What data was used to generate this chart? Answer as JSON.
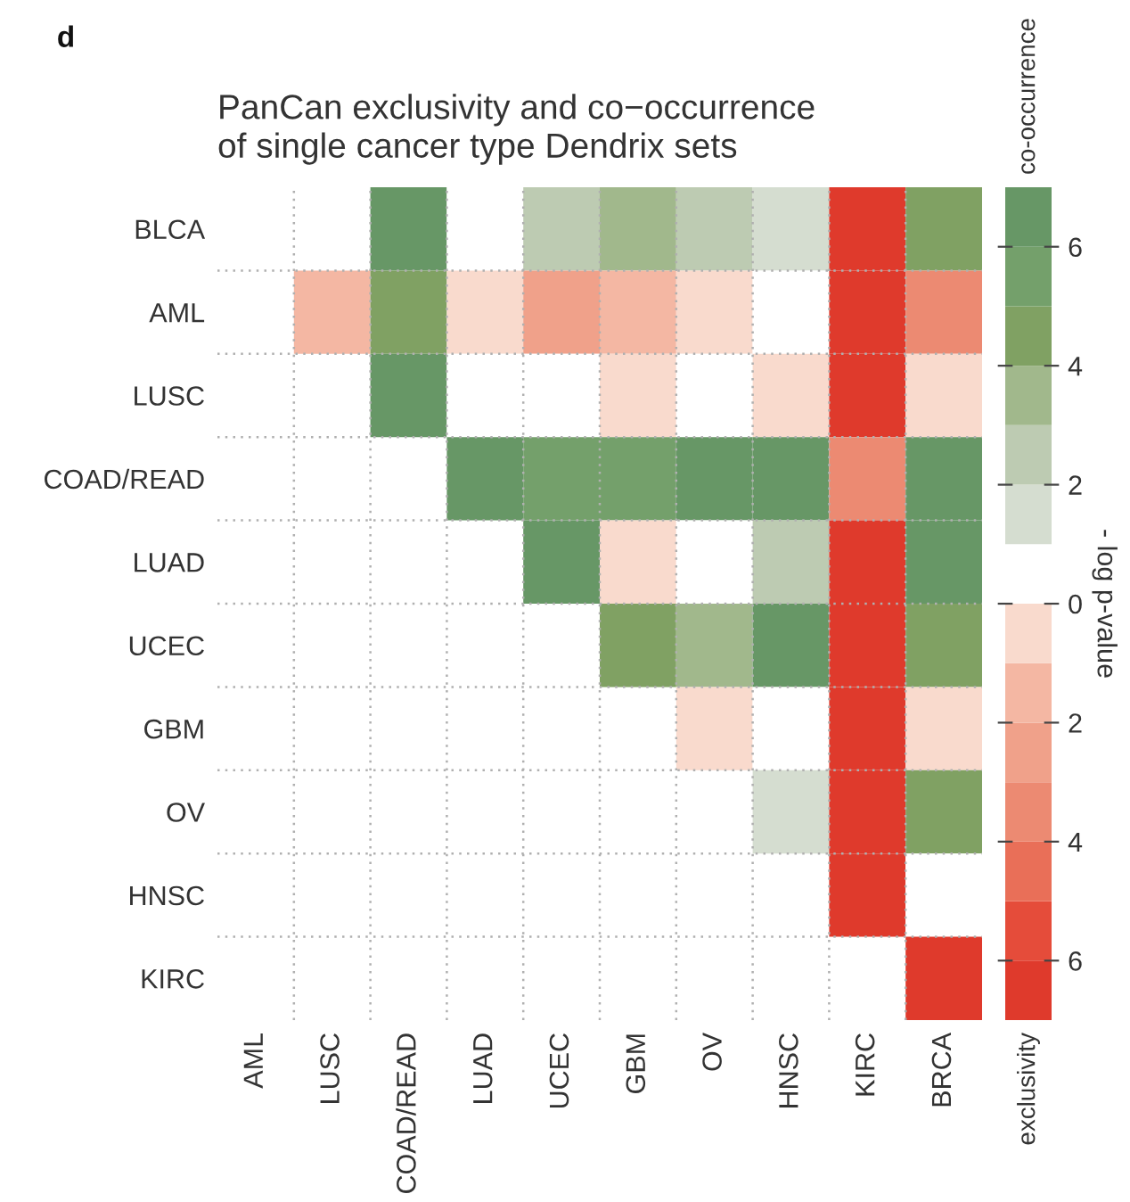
{
  "chart_data": {
    "type": "heatmap",
    "title": "PanCan exclusivity and co−occurrence\nof single cancer type Dendrix sets",
    "categories": [
      "AML",
      "LUSC",
      "COAD/READ",
      "LUAD",
      "UCEC",
      "GBM",
      "OV",
      "HNSC",
      "KIRC",
      "BRCA"
    ],
    "y_categories": [
      "BLCA",
      "AML",
      "LUSC",
      "COAD/READ",
      "LUAD",
      "UCEC",
      "GBM",
      "OV",
      "HNSC",
      "KIRC"
    ],
    "cells": [
      [
        0.5,
        0.5,
        6.5,
        0.5,
        2.5,
        3.5,
        2.5,
        1.5,
        -6.5,
        4.5
      ],
      [
        null,
        -1.5,
        4.5,
        -0.5,
        -2.5,
        -1.5,
        -0.5,
        0.5,
        -6.5,
        -3.5
      ],
      [
        null,
        null,
        6.5,
        0.5,
        0.5,
        -0.5,
        0.5,
        -0.5,
        -6.5,
        -0.5
      ],
      [
        null,
        null,
        null,
        6.5,
        5.5,
        5.5,
        6.5,
        6.5,
        -3.5,
        6.5
      ],
      [
        null,
        null,
        null,
        null,
        6.5,
        -0.5,
        0.5,
        2.5,
        -6.5,
        6.5
      ],
      [
        null,
        null,
        null,
        null,
        null,
        4.5,
        3.5,
        6.5,
        -6.5,
        4.5
      ],
      [
        null,
        null,
        null,
        null,
        null,
        null,
        -0.5,
        0.5,
        -6.5,
        -0.5
      ],
      [
        null,
        null,
        null,
        null,
        null,
        null,
        null,
        1.5,
        -6.5,
        4.5
      ],
      [
        null,
        null,
        null,
        null,
        null,
        null,
        null,
        null,
        -6.5,
        0.5
      ],
      [
        null,
        null,
        null,
        null,
        null,
        null,
        null,
        null,
        null,
        -6.5
      ]
    ],
    "clim": [
      -7,
      7
    ],
    "cticks": [
      {
        "value": 6,
        "label": "6"
      },
      {
        "value": 4,
        "label": "4"
      },
      {
        "value": 2,
        "label": "2"
      },
      {
        "value": 0,
        "label": "0"
      },
      {
        "value": -2,
        "label": "2"
      },
      {
        "value": -4,
        "label": "4"
      },
      {
        "value": -6,
        "label": "6"
      }
    ],
    "clabel": "- log p-value",
    "annotations": [
      "d",
      "co-occurrence",
      "exclusivity"
    ],
    "grid": true
  }
}
